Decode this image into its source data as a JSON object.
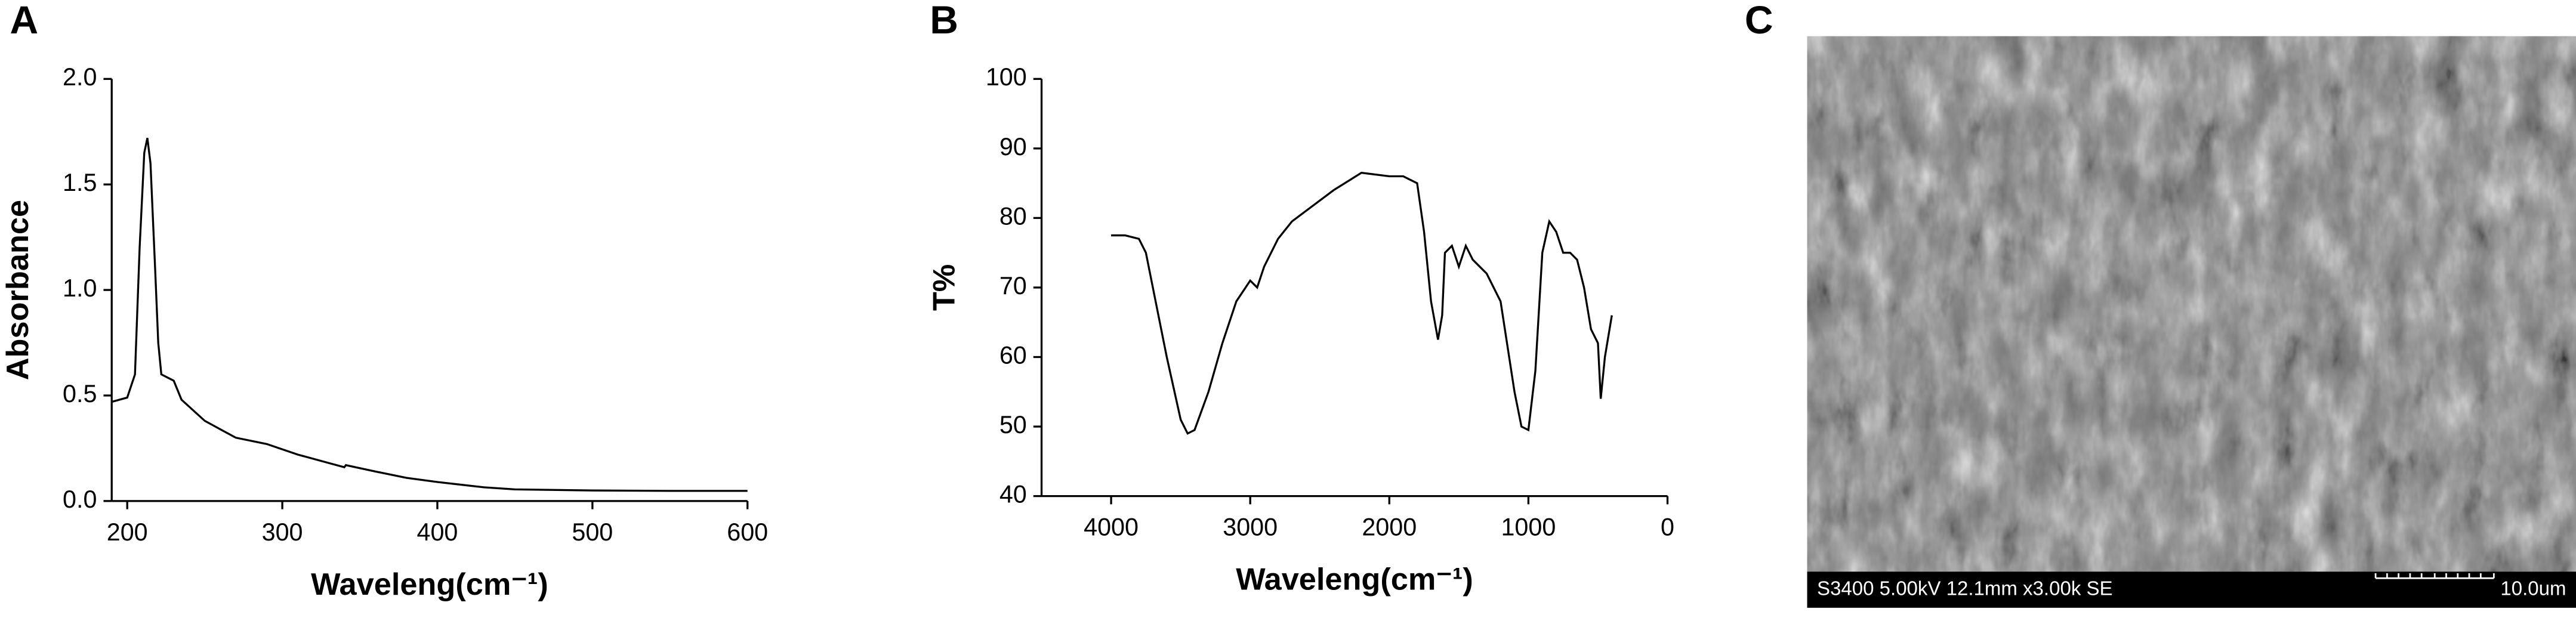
{
  "chart_data": [
    {
      "type": "line",
      "label": "A",
      "xlabel": "Waveleng(cm⁻¹)",
      "ylabel": "Absorbance",
      "color": "#000000",
      "xlim": [
        190,
        600
      ],
      "xticks": [
        200,
        300,
        400,
        500,
        600
      ],
      "ylim": [
        0,
        2
      ],
      "yticks": [
        {
          "value": 0,
          "label": "0.0"
        },
        0.5,
        {
          "value": 1,
          "label": "1.0"
        },
        1.5,
        {
          "value": 2,
          "label": "2.0"
        }
      ],
      "x": [
        190,
        200,
        205,
        208,
        211,
        213,
        215,
        218,
        220,
        222,
        230,
        235,
        250,
        270,
        290,
        310,
        330,
        340,
        341,
        360,
        380,
        400,
        430,
        450,
        500,
        550,
        600
      ],
      "values": [
        0.47,
        0.49,
        0.6,
        1.2,
        1.65,
        1.72,
        1.6,
        1.1,
        0.75,
        0.6,
        0.57,
        0.48,
        0.38,
        0.3,
        0.27,
        0.22,
        0.18,
        0.16,
        0.17,
        0.14,
        0.11,
        0.09,
        0.065,
        0.055,
        0.05,
        0.048,
        0.048
      ]
    },
    {
      "type": "line",
      "label": "B",
      "xlabel": "Waveleng(cm⁻¹)",
      "ylabel": "T%",
      "color": "#000000",
      "xlim": [
        4500,
        0
      ],
      "xticks": [
        4000,
        3000,
        2000,
        1000,
        0
      ],
      "ylim": [
        40,
        100
      ],
      "yticks": [
        40,
        50,
        60,
        70,
        80,
        90,
        100
      ],
      "x": [
        4000,
        3900,
        3800,
        3750,
        3700,
        3600,
        3500,
        3450,
        3400,
        3300,
        3200,
        3100,
        3000,
        2950,
        2900,
        2800,
        2700,
        2600,
        2400,
        2200,
        2000,
        1900,
        1800,
        1750,
        1700,
        1650,
        1620,
        1600,
        1550,
        1500,
        1450,
        1400,
        1300,
        1200,
        1100,
        1050,
        1000,
        950,
        900,
        850,
        800,
        750,
        700,
        650,
        600,
        550,
        500,
        480,
        450,
        400
      ],
      "values": [
        77.5,
        77.5,
        77,
        75,
        70,
        60,
        51,
        49,
        49.5,
        55,
        62,
        68,
        71,
        70,
        73,
        77,
        79.5,
        81,
        84,
        86.5,
        86,
        86,
        85,
        78,
        68,
        62.5,
        66,
        75,
        76,
        73,
        76,
        74,
        72,
        68,
        55,
        50,
        49.5,
        58,
        75,
        79.5,
        78,
        75,
        75,
        74,
        70,
        64,
        62,
        54,
        60,
        66
      ]
    }
  ],
  "image": {
    "label": "C",
    "caption": "S3400 5.00kV 12.1mm x3.00k SE",
    "scale": "10.0um"
  }
}
